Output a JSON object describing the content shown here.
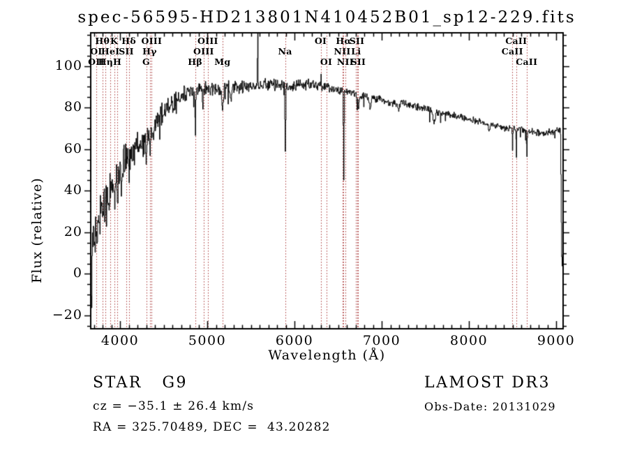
{
  "title": "spec-56595-HD213801N410452B01_sp12-229.fits",
  "annotations": {
    "class_label": "STAR   G9",
    "survey": "LAMOST DR3",
    "cz": "cz = −35.1 ± 26.4 km/s",
    "obs_date": "Obs-Date: 20131029",
    "ra_dec": "RA = 325.70489, DEC =  43.20282"
  },
  "chart_data": {
    "type": "line",
    "title": "spec-56595-HD213801N410452B01_sp12-229.fits",
    "xlabel": "Wavelength (Å)",
    "ylabel": "Flux (relative)",
    "xlim": [
      3664,
      9080
    ],
    "ylim": [
      -26.4,
      116
    ],
    "x_ticks": [
      4000,
      5000,
      6000,
      7000,
      8000,
      9000
    ],
    "x_tick_labels": [
      "4000",
      "5000",
      "6000",
      "7000",
      "8000",
      "9000"
    ],
    "x_minor_step": 100,
    "y_ticks": [
      -20,
      0,
      20,
      40,
      60,
      80,
      100
    ],
    "y_tick_labels": [
      "−20",
      "0",
      "20",
      "40",
      "60",
      "80",
      "100"
    ],
    "y_minor_step": 5,
    "grid": false,
    "legend": null,
    "line_color": "#000000",
    "marker_line_color": "#a83434",
    "spectral_lines": [
      {
        "label": "OI",
        "wavelength": 3727,
        "row": 2
      },
      {
        "label": "OII",
        "wavelength": 3727,
        "row": 3
      },
      {
        "label": "Hθ",
        "wavelength": 3798,
        "row": 1
      },
      {
        "label": "Hη",
        "wavelength": 3835,
        "row": 3
      },
      {
        "label": "HeI",
        "wavelength": 3889,
        "row": 2
      },
      {
        "label": "K",
        "wavelength": 3933,
        "row": 1
      },
      {
        "label": "H",
        "wavelength": 3968,
        "row": 3
      },
      {
        "label": "SII",
        "wavelength": 4072,
        "row": 2
      },
      {
        "label": "Hδ",
        "wavelength": 4101,
        "row": 1
      },
      {
        "label": "G",
        "wavelength": 4300,
        "row": 3
      },
      {
        "label": "Hγ",
        "wavelength": 4340,
        "row": 2
      },
      {
        "label": "OIII",
        "wavelength": 4363,
        "row": 1
      },
      {
        "label": "Hβ",
        "wavelength": 4861,
        "row": 3
      },
      {
        "label": "OIII",
        "wavelength": 4959,
        "row": 2
      },
      {
        "label": "OIII",
        "wavelength": 5007,
        "row": 1
      },
      {
        "label": "Mg",
        "wavelength": 5175,
        "row": 3
      },
      {
        "label": "Na",
        "wavelength": 5893,
        "row": 2
      },
      {
        "label": "OI",
        "wavelength": 6300,
        "row": 1
      },
      {
        "label": "OI",
        "wavelength": 6364,
        "row": 3
      },
      {
        "label": "NII",
        "wavelength": 6548,
        "row": 2
      },
      {
        "label": "Hα",
        "wavelength": 6563,
        "row": 1
      },
      {
        "label": "NII",
        "wavelength": 6583,
        "row": 3
      },
      {
        "label": "Li",
        "wavelength": 6707,
        "row": 2
      },
      {
        "label": "SII",
        "wavelength": 6716,
        "row": 1
      },
      {
        "label": "SII",
        "wavelength": 6731,
        "row": 3
      },
      {
        "label": "CaII",
        "wavelength": 8498,
        "row": 2
      },
      {
        "label": "CaII",
        "wavelength": 8542,
        "row": 1
      },
      {
        "label": "CaII",
        "wavelength": 8662,
        "row": 3
      }
    ],
    "continuum_anchors": [
      [
        3664,
        -20
      ],
      [
        3670,
        -4
      ],
      [
        3678,
        10
      ],
      [
        3692,
        20
      ],
      [
        3710,
        23
      ],
      [
        3740,
        25
      ],
      [
        3780,
        28
      ],
      [
        3820,
        31
      ],
      [
        3860,
        35
      ],
      [
        3900,
        40
      ],
      [
        3940,
        44
      ],
      [
        3980,
        48
      ],
      [
        4020,
        52
      ],
      [
        4060,
        55
      ],
      [
        4100,
        57
      ],
      [
        4150,
        60
      ],
      [
        4200,
        62
      ],
      [
        4260,
        64
      ],
      [
        4320,
        66
      ],
      [
        4380,
        71
      ],
      [
        4440,
        75
      ],
      [
        4500,
        78
      ],
      [
        4560,
        81
      ],
      [
        4620,
        83
      ],
      [
        4700,
        85
      ],
      [
        4780,
        87
      ],
      [
        4860,
        88
      ],
      [
        4950,
        89
      ],
      [
        5050,
        89
      ],
      [
        5150,
        89
      ],
      [
        5250,
        90
      ],
      [
        5350,
        90
      ],
      [
        5450,
        90
      ],
      [
        5550,
        91
      ],
      [
        5650,
        91
      ],
      [
        5750,
        91
      ],
      [
        5850,
        91
      ],
      [
        5950,
        90
      ],
      [
        6050,
        91
      ],
      [
        6150,
        92
      ],
      [
        6250,
        91
      ],
      [
        6350,
        90
      ],
      [
        6450,
        89
      ],
      [
        6550,
        88
      ],
      [
        6650,
        87
      ],
      [
        6750,
        86
      ],
      [
        6850,
        85
      ],
      [
        6950,
        84
      ],
      [
        7050,
        83
      ],
      [
        7150,
        82
      ],
      [
        7250,
        82
      ],
      [
        7350,
        81
      ],
      [
        7450,
        80
      ],
      [
        7550,
        79
      ],
      [
        7650,
        78
      ],
      [
        7750,
        77
      ],
      [
        7850,
        76
      ],
      [
        7950,
        75
      ],
      [
        8050,
        74
      ],
      [
        8150,
        73
      ],
      [
        8250,
        72
      ],
      [
        8350,
        71
      ],
      [
        8450,
        70
      ],
      [
        8550,
        70
      ],
      [
        8650,
        69
      ],
      [
        8750,
        68
      ],
      [
        8850,
        68
      ],
      [
        8950,
        68
      ],
      [
        9030,
        69
      ],
      [
        9048,
        69
      ],
      [
        9054,
        45
      ],
      [
        9060,
        14
      ],
      [
        9066,
        4
      ],
      [
        9072,
        4
      ],
      [
        9076,
        18
      ]
    ],
    "absorption_features": [
      [
        3933,
        10,
        4
      ],
      [
        3968,
        10,
        4
      ],
      [
        4101,
        13,
        4
      ],
      [
        4300,
        11,
        6
      ],
      [
        4340,
        11,
        4
      ],
      [
        4383,
        6,
        4
      ],
      [
        4861,
        21,
        4
      ],
      [
        5175,
        10,
        9
      ],
      [
        5270,
        5,
        6
      ],
      [
        5893,
        33,
        4
      ],
      [
        6563,
        42,
        3.5
      ],
      [
        6716,
        7,
        4
      ],
      [
        6731,
        8,
        4
      ],
      [
        6867,
        6,
        8
      ],
      [
        7190,
        3,
        10
      ],
      [
        7600,
        6,
        12
      ],
      [
        8230,
        4,
        8
      ],
      [
        8498,
        11,
        3
      ],
      [
        8542,
        15,
        3
      ],
      [
        8662,
        13,
        3
      ]
    ],
    "emission_features": [
      [
        5577,
        45,
        2.5
      ],
      [
        6301,
        11,
        2
      ]
    ],
    "noise_profile": [
      [
        3664,
        13
      ],
      [
        3750,
        11
      ],
      [
        3850,
        10
      ],
      [
        3950,
        9
      ],
      [
        4050,
        8
      ],
      [
        4200,
        7
      ],
      [
        4350,
        6
      ],
      [
        4500,
        5
      ],
      [
        4650,
        4.5
      ],
      [
        4800,
        4
      ],
      [
        5000,
        3.2
      ],
      [
        5200,
        3
      ],
      [
        5400,
        3
      ],
      [
        5600,
        2.8
      ],
      [
        5800,
        2.6
      ],
      [
        6000,
        2.4
      ],
      [
        6300,
        2.2
      ],
      [
        6600,
        2
      ],
      [
        7000,
        1.8
      ],
      [
        7400,
        1.8
      ],
      [
        7800,
        1.6
      ],
      [
        8200,
        1.5
      ],
      [
        8600,
        1.8
      ],
      [
        9000,
        1.8
      ]
    ],
    "sample_step": 5,
    "noise_seed": 13,
    "dip_chance": 0.03,
    "dip_scale": 3
  }
}
